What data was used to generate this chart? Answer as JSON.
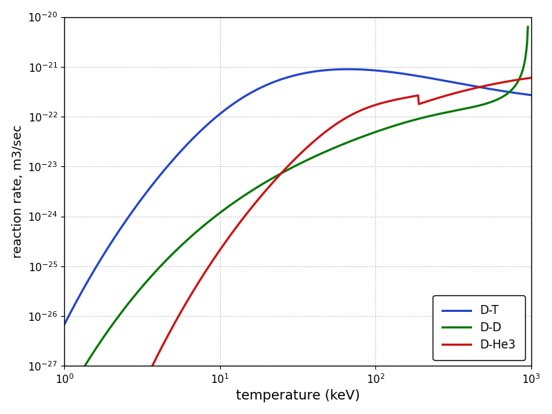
{
  "title": "",
  "xlabel": "temperature (keV)",
  "ylabel": "reaction rate, m3/sec",
  "xlim": [
    1,
    1000
  ],
  "ylim": [
    1e-27,
    1e-20
  ],
  "grid_color": "#aaaaaa",
  "grid_linestyle": ":",
  "background_color": "#ffffff",
  "plot_bg_color": "#ffffff",
  "legend_entries": [
    "D-T",
    "D-D",
    "D-He3"
  ],
  "line_colors": [
    "#2244cc",
    "#007700",
    "#cc1111"
  ],
  "line_width": 2.2,
  "figsize": [
    8.0,
    6.0
  ],
  "dpi": 100,
  "xlabel_fontsize": 14,
  "ylabel_fontsize": 13,
  "tick_fontsize": 11,
  "legend_fontsize": 12
}
